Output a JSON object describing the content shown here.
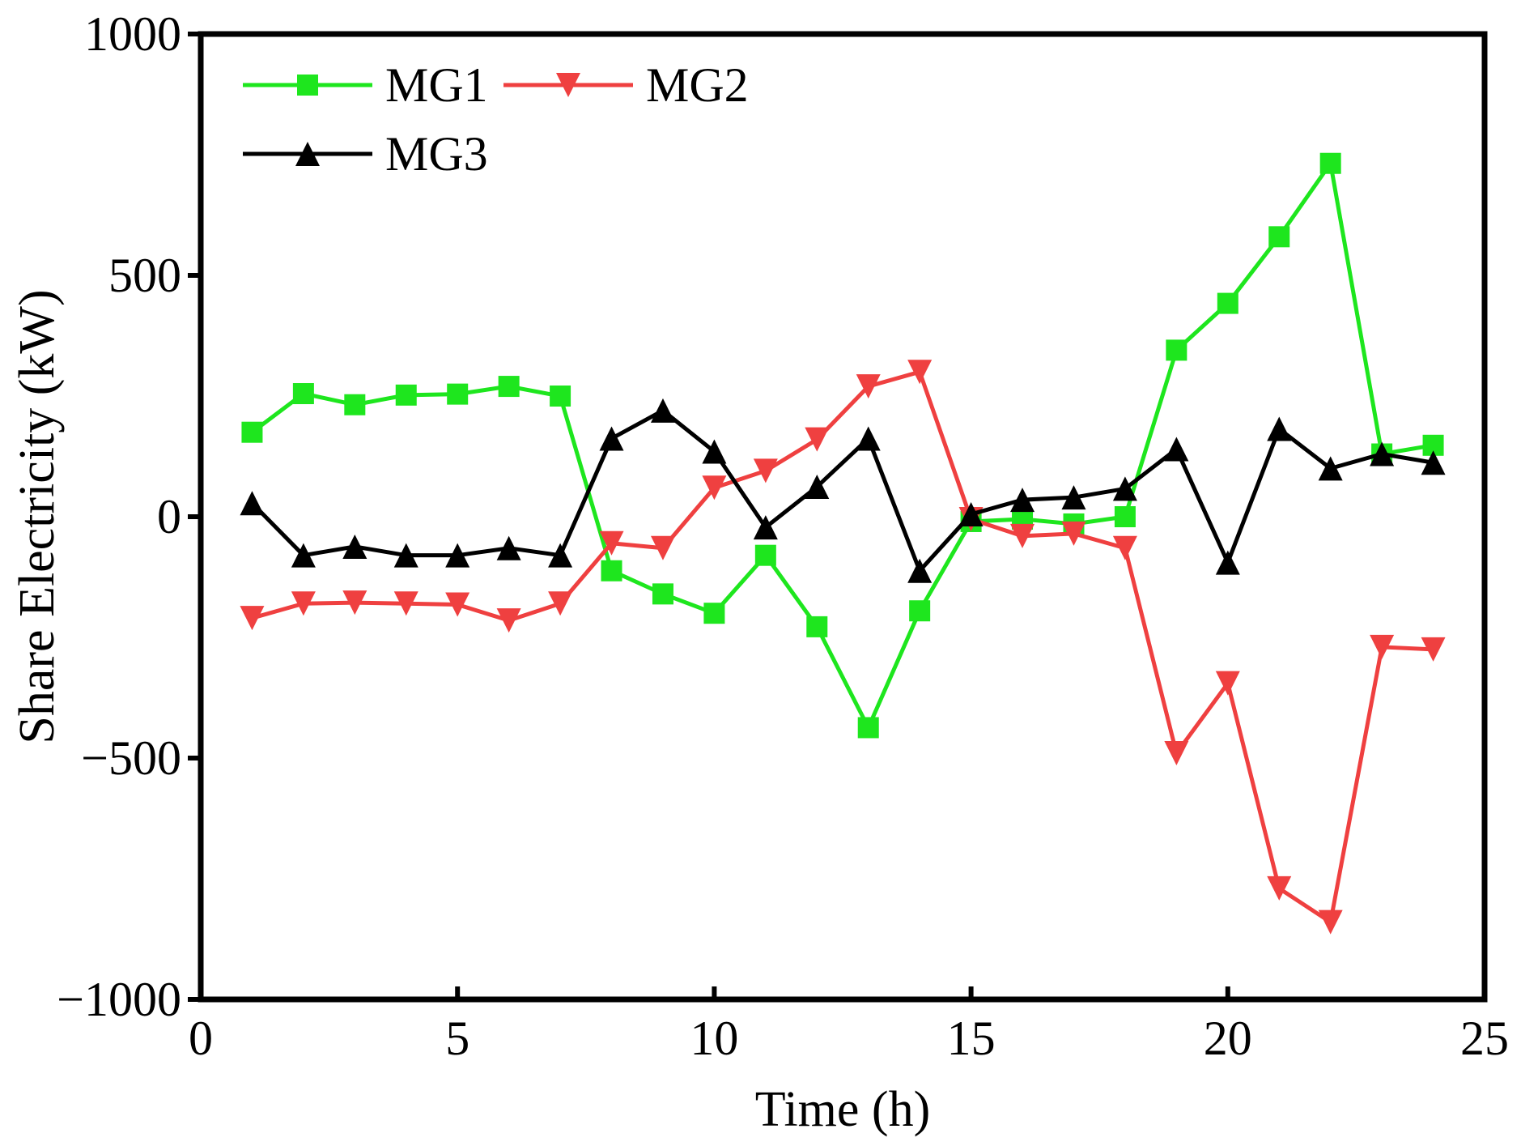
{
  "chart_data": {
    "type": "line",
    "title": "",
    "xlabel": "Time (h)",
    "ylabel": "Share Electricity (kW)",
    "xlim": [
      0,
      25
    ],
    "ylim": [
      -1000,
      1000
    ],
    "xticks": [
      0,
      5,
      10,
      15,
      20,
      25
    ],
    "yticks": [
      -1000,
      -500,
      0,
      500,
      1000
    ],
    "xtick_labels": [
      "0",
      "5",
      "10",
      "15",
      "20",
      "25"
    ],
    "ytick_labels": [
      "−1000",
      "−500",
      "0",
      "500",
      "1000"
    ],
    "grid": false,
    "legend_position": "top-left",
    "x": [
      1,
      2,
      3,
      4,
      5,
      6,
      7,
      8,
      9,
      10,
      11,
      12,
      13,
      14,
      15,
      16,
      17,
      18,
      19,
      20,
      21,
      22,
      23,
      24
    ],
    "series": [
      {
        "name": "MG1",
        "color": "#1ee61e",
        "marker": "square",
        "values": [
          175,
          255,
          232,
          252,
          254,
          270,
          250,
          -112,
          -160,
          -200,
          -80,
          -228,
          -437,
          -195,
          -10,
          -5,
          -15,
          0,
          345,
          442,
          580,
          732,
          130,
          148
        ]
      },
      {
        "name": "MG2",
        "color": "#ef4040",
        "marker": "triangle-down",
        "values": [
          -210,
          -180,
          -178,
          -180,
          -182,
          -215,
          -180,
          -55,
          -65,
          60,
          95,
          160,
          270,
          300,
          -5,
          -40,
          -35,
          -65,
          -490,
          -345,
          -770,
          -840,
          -270,
          -275
        ]
      },
      {
        "name": "MG3",
        "color": "#000000",
        "marker": "triangle-up",
        "values": [
          28,
          -80,
          -62,
          -80,
          -80,
          -65,
          -80,
          162,
          220,
          135,
          -22,
          62,
          162,
          -112,
          5,
          35,
          40,
          58,
          140,
          -95,
          182,
          100,
          130,
          112
        ]
      }
    ]
  }
}
